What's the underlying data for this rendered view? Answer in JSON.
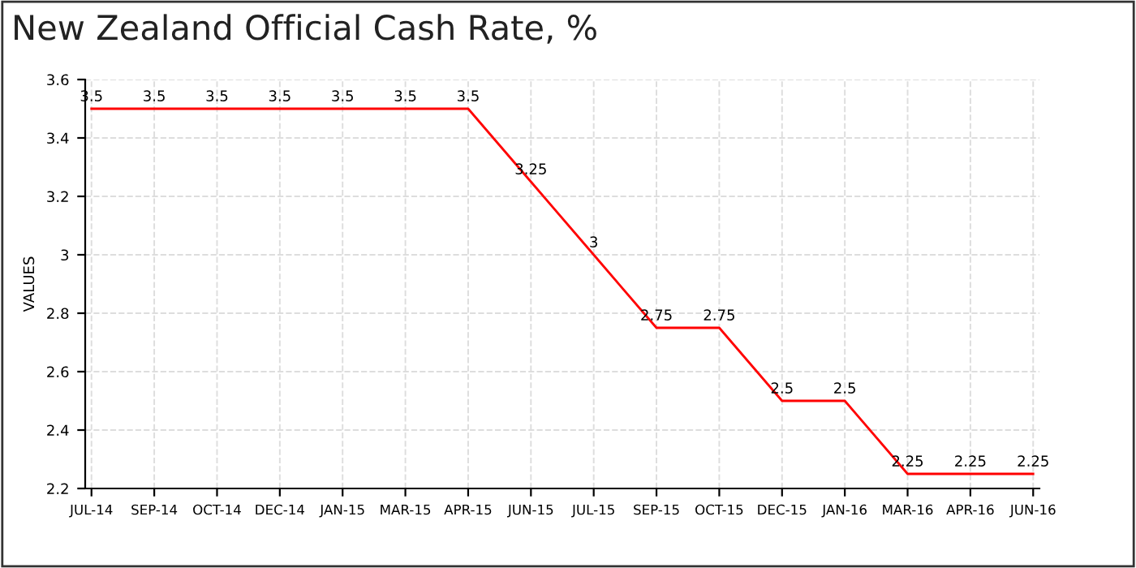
{
  "chart_data": {
    "type": "line",
    "title": "New Zealand Official Cash Rate, %",
    "ylabel": "VALUES",
    "categories": [
      "JUL-14",
      "SEP-14",
      "OCT-14",
      "DEC-14",
      "JAN-15",
      "MAR-15",
      "APR-15",
      "JUN-15",
      "JUL-15",
      "SEP-15",
      "OCT-15",
      "DEC-15",
      "JAN-16",
      "MAR-16",
      "APR-16",
      "JUN-16"
    ],
    "series": [
      {
        "color": "#ff0000",
        "values": [
          3.5,
          3.5,
          3.5,
          3.5,
          3.5,
          3.5,
          3.5,
          3.25,
          3,
          2.75,
          2.75,
          2.5,
          2.5,
          2.25,
          2.25,
          2.25
        ]
      }
    ],
    "ylim": [
      2.2,
      3.6
    ],
    "yticks": [
      2.2,
      2.4,
      2.6,
      2.8,
      3,
      3.2,
      3.4,
      3.6
    ],
    "grid": true,
    "data_labels": true,
    "marker": "none",
    "line_style": "solid",
    "legend": false
  }
}
